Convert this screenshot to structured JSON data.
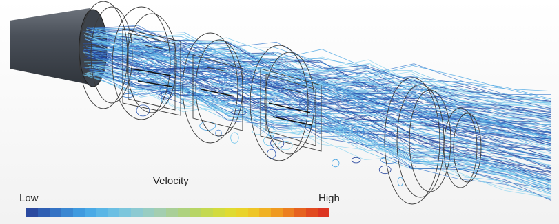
{
  "legend": {
    "title": "Velocity",
    "low_label": "Low",
    "high_label": "High",
    "colors": [
      "#2b4aa0",
      "#2f5fb3",
      "#3573c4",
      "#3a87d2",
      "#3f9adf",
      "#4aaae6",
      "#5ab6e6",
      "#6bbfe3",
      "#7cc6dc",
      "#8ccad2",
      "#98cdc2",
      "#a3ceb0",
      "#a9cf97",
      "#aed27e",
      "#b7d565",
      "#c4d950",
      "#d2db3e",
      "#dfdb31",
      "#e9d32a",
      "#eec526",
      "#f0b123",
      "#ef9a21",
      "#ec7f20",
      "#e6621f",
      "#e14a20",
      "#dc3522"
    ]
  },
  "streamline_colors": [
    "#1f3f9a",
    "#3f7fd0",
    "#4aa5e2",
    "#6cc3ea",
    "#8fd6f0",
    "#2a56b0"
  ],
  "geometry_stroke": "#3a3a3a",
  "pipe_color": "#454c56"
}
